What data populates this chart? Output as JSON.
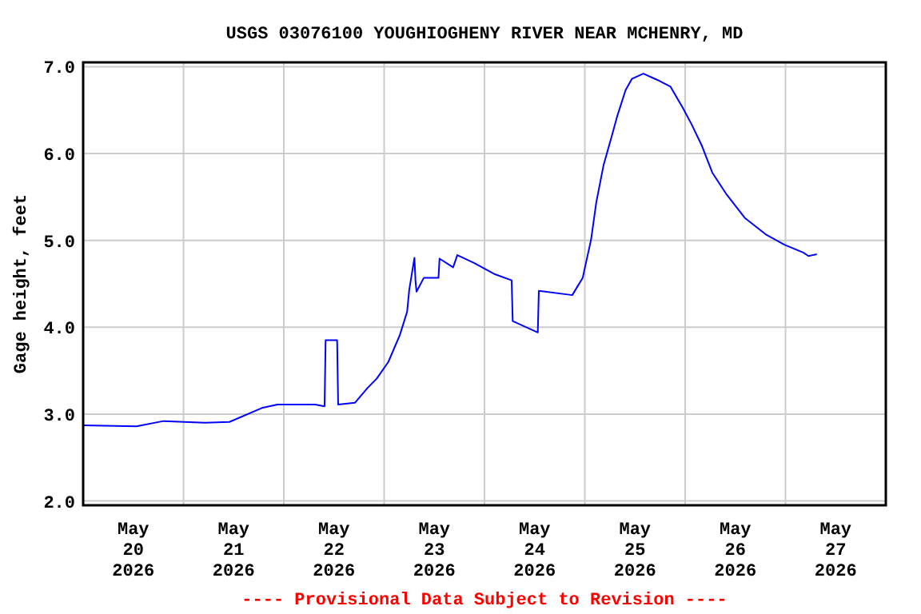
{
  "chart_data": {
    "type": "line",
    "title": "USGS 03076100 YOUGHIOGHENY RIVER NEAR MCHENRY, MD",
    "ylabel": "Gage height, feet",
    "annotations": [
      "---- Provisional Data Subject to Revision ----"
    ],
    "xlim": [
      "2026-05-20T00:00",
      "2026-05-28T00:00"
    ],
    "xticks": [
      {
        "value": "2026-05-20T12:00",
        "label": "May\n20\n2026"
      },
      {
        "value": "2026-05-21T12:00",
        "label": "May\n21\n2026"
      },
      {
        "value": "2026-05-22T12:00",
        "label": "May\n22\n2026"
      },
      {
        "value": "2026-05-23T12:00",
        "label": "May\n23\n2026"
      },
      {
        "value": "2026-05-24T12:00",
        "label": "May\n24\n2026"
      },
      {
        "value": "2026-05-25T12:00",
        "label": "May\n25\n2026"
      },
      {
        "value": "2026-05-26T12:00",
        "label": "May\n26\n2026"
      },
      {
        "value": "2026-05-27T12:00",
        "label": "May\n27\n2026"
      },
      {
        "value": "2026-05-21T00:00",
        "label": null
      },
      {
        "value": "2026-05-22T00:00",
        "label": null
      },
      {
        "value": "2026-05-23T00:00",
        "label": null
      },
      {
        "value": "2026-05-24T00:00",
        "label": null
      },
      {
        "value": "2026-05-25T00:00",
        "label": null
      },
      {
        "value": "2026-05-26T00:00",
        "label": null
      },
      {
        "value": "2026-05-27T00:00",
        "label": null
      }
    ],
    "ylim": [
      1.95,
      7.05
    ],
    "yticks": [
      {
        "value": 2,
        "label": "2.0"
      },
      {
        "value": 3,
        "label": "3.0"
      },
      {
        "value": 4,
        "label": "4.0"
      },
      {
        "value": 5,
        "label": "5.0"
      },
      {
        "value": 6,
        "label": "6.0"
      },
      {
        "value": 7,
        "label": "7.0"
      }
    ],
    "grid": true,
    "marker": "none",
    "line_style": "solid",
    "x": [
      "2026-05-20T00:00",
      "2026-05-20T12:45",
      "2026-05-20T19:15",
      "2026-05-21T05:15",
      "2026-05-21T11:00",
      "2026-05-21T18:45",
      "2026-05-21T22:30",
      "2026-05-22T07:30",
      "2026-05-22T09:45",
      "2026-05-22T10:00",
      "2026-05-22T12:45",
      "2026-05-22T13:00",
      "2026-05-22T17:00",
      "2026-05-22T20:00",
      "2026-05-22T22:15",
      "2026-05-23T01:00",
      "2026-05-23T03:45",
      "2026-05-23T05:30",
      "2026-05-23T06:00",
      "2026-05-23T07:15",
      "2026-05-23T07:30",
      "2026-05-23T07:45",
      "2026-05-23T09:30",
      "2026-05-23T13:00",
      "2026-05-23T13:15",
      "2026-05-23T16:30",
      "2026-05-23T17:30",
      "2026-05-23T21:30",
      "2026-05-24T02:30",
      "2026-05-24T06:30",
      "2026-05-24T06:45",
      "2026-05-24T12:45",
      "2026-05-24T13:00",
      "2026-05-24T21:00",
      "2026-05-24T23:30",
      "2026-05-25T01:30",
      "2026-05-25T02:45",
      "2026-05-25T04:30",
      "2026-05-25T06:30",
      "2026-05-25T07:45",
      "2026-05-25T09:45",
      "2026-05-25T11:15",
      "2026-05-25T14:00",
      "2026-05-25T17:15",
      "2026-05-25T20:30",
      "2026-05-25T23:30",
      "2026-05-26T01:30",
      "2026-05-26T04:00",
      "2026-05-26T06:30",
      "2026-05-26T09:45",
      "2026-05-26T14:15",
      "2026-05-26T19:15",
      "2026-05-26T23:45",
      "2026-05-27T04:15",
      "2026-05-27T05:30",
      "2026-05-27T07:30"
    ],
    "series": [
      {
        "color": "#0000ff",
        "values": [
          2.87,
          2.86,
          2.92,
          2.9,
          2.91,
          3.07,
          3.11,
          3.11,
          3.09,
          3.85,
          3.85,
          3.11,
          3.13,
          3.3,
          3.41,
          3.6,
          3.91,
          4.18,
          4.43,
          4.8,
          4.53,
          4.41,
          4.57,
          4.57,
          4.79,
          4.69,
          4.83,
          4.74,
          4.61,
          4.54,
          4.07,
          3.94,
          4.42,
          4.37,
          4.57,
          5.01,
          5.44,
          5.87,
          6.21,
          6.43,
          6.73,
          6.86,
          6.92,
          6.85,
          6.77,
          6.52,
          6.34,
          6.09,
          5.78,
          5.54,
          5.26,
          5.07,
          4.95,
          4.86,
          4.82,
          4.84
        ]
      }
    ]
  }
}
